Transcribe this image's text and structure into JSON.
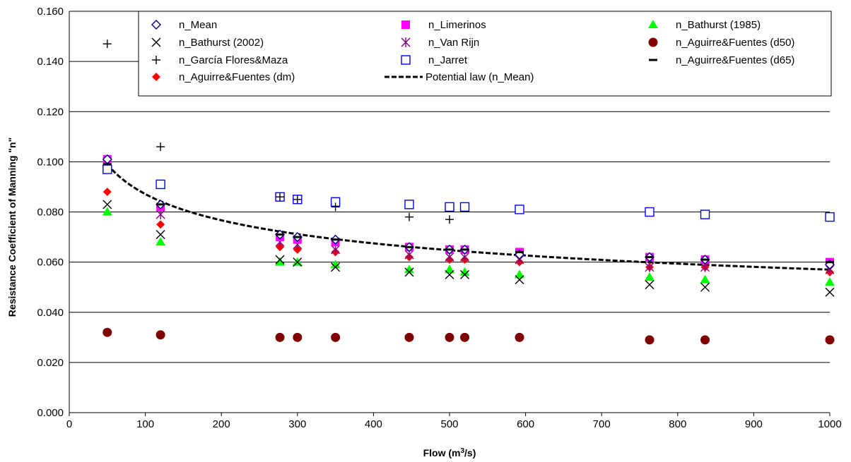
{
  "chart_data": {
    "type": "scatter",
    "ylabel": "Resistance Coefficient of Manning \"n\"",
    "xlabel": "Flow (m3/s)",
    "xlim": [
      0,
      1000
    ],
    "ylim": [
      0,
      0.16
    ],
    "x_ticks": [
      "0",
      "100",
      "200",
      "300",
      "400",
      "500",
      "600",
      "700",
      "800",
      "900",
      "1000"
    ],
    "y_ticks": [
      "0.000",
      "0.020",
      "0.040",
      "0.060",
      "0.080",
      "0.100",
      "0.120",
      "0.140",
      "0.160"
    ],
    "grid": "horizontal",
    "legend_position": "top",
    "flows": [
      50,
      120,
      277,
      300,
      350,
      447,
      500,
      520,
      592,
      763,
      836,
      1000
    ],
    "series": [
      {
        "name": "n_Mean",
        "marker": "diamond-open",
        "color": "#000080",
        "values": [
          0.101,
          0.083,
          0.071,
          0.07,
          0.069,
          0.066,
          0.065,
          0.065,
          0.063,
          0.062,
          0.061,
          0.059
        ]
      },
      {
        "name": "n_Limerinos",
        "marker": "square-filled",
        "color": "#ff00ff",
        "values": [
          0.101,
          0.082,
          0.07,
          0.069,
          0.068,
          0.066,
          0.065,
          0.065,
          0.064,
          0.062,
          0.061,
          0.06
        ]
      },
      {
        "name": "n_Bathurst (1985)",
        "marker": "triangle-filled",
        "color": "#00ff00",
        "values": [
          0.08,
          0.068,
          0.06,
          0.06,
          0.059,
          0.057,
          0.057,
          0.056,
          0.055,
          0.054,
          0.053,
          0.052
        ]
      },
      {
        "name": "n_Bathurst (2002)",
        "marker": "x",
        "color": "#000000",
        "values": [
          0.083,
          0.071,
          0.061,
          0.06,
          0.058,
          0.056,
          0.055,
          0.055,
          0.053,
          0.051,
          0.05,
          0.048
        ]
      },
      {
        "name": "n_Van Rijn",
        "marker": "asterisk",
        "color": "#800080",
        "values": [
          0.1,
          0.079,
          0.068,
          0.067,
          0.065,
          0.063,
          0.062,
          0.062,
          0.061,
          0.058,
          0.058,
          0.057
        ]
      },
      {
        "name": "n_Aguirre&Fuentes (d50)",
        "marker": "circle-filled",
        "color": "#800000",
        "values": [
          0.032,
          0.031,
          0.03,
          0.03,
          0.03,
          0.03,
          0.03,
          0.03,
          0.03,
          0.029,
          0.029,
          0.029
        ]
      },
      {
        "name": "n_García Flores&Maza",
        "marker": "plus",
        "color": "#000000",
        "values": [
          0.147,
          0.106,
          0.086,
          0.085,
          0.082,
          0.078,
          0.077,
          null,
          null,
          null,
          null,
          null
        ]
      },
      {
        "name": "n_Jarret",
        "marker": "square-open",
        "color": "#0000ff",
        "values": [
          0.097,
          0.091,
          0.086,
          0.085,
          0.084,
          0.083,
          0.082,
          0.082,
          0.081,
          0.08,
          0.079,
          0.078
        ]
      },
      {
        "name": "n_Aguirre&Fuentes (d65)",
        "marker": "dash",
        "color": "#000000",
        "values": [
          0.099,
          0.083,
          0.071,
          0.07,
          0.069,
          0.066,
          0.065,
          0.065,
          0.064,
          0.062,
          0.061,
          0.06
        ]
      },
      {
        "name": "n_Aguirre&Fuentes (dm)",
        "marker": "diamond-filled",
        "color": "#ff0000",
        "values": [
          0.088,
          0.075,
          0.066,
          0.065,
          0.064,
          0.062,
          0.061,
          0.061,
          0.06,
          0.058,
          0.058,
          0.056
        ]
      }
    ],
    "trendline": {
      "name": "Potential law (n_Mean)",
      "type": "power",
      "x_range": [
        50,
        1000
      ],
      "y_start": 0.099,
      "y_end": 0.057,
      "color": "#000000"
    },
    "legend_order": [
      "n_Mean",
      "n_Limerinos",
      "n_Bathurst (1985)",
      "n_Bathurst (2002)",
      "n_Van Rijn",
      "n_Aguirre&Fuentes (d50)",
      "n_García Flores&Maza",
      "n_Jarret",
      "n_Aguirre&Fuentes (d65)",
      "n_Aguirre&Fuentes (dm)",
      "Potential law (n_Mean)"
    ]
  }
}
